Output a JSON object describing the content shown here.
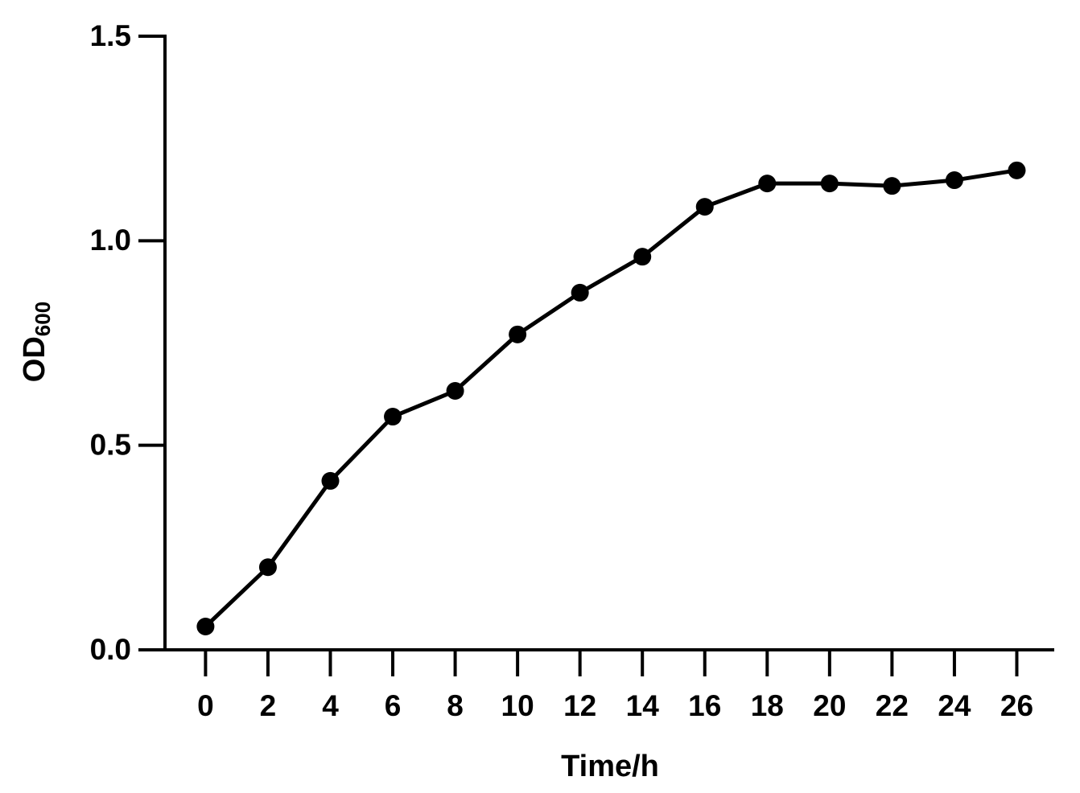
{
  "chart_data": {
    "type": "line",
    "x_label": "Time/h",
    "y_label": "OD",
    "y_label_subscript": "600",
    "x": [
      0,
      2,
      4,
      6,
      8,
      10,
      12,
      14,
      16,
      18,
      20,
      22,
      24,
      26
    ],
    "series": [
      {
        "color": "#000000",
        "values": [
          0.057,
          0.202,
          0.413,
          0.57,
          0.633,
          0.771,
          0.873,
          0.961,
          1.083,
          1.14,
          1.14,
          1.134,
          1.148,
          1.172
        ]
      }
    ],
    "xlim": [
      -1.3,
      27.2
    ],
    "xticks": [
      0,
      2,
      4,
      6,
      8,
      10,
      12,
      14,
      16,
      18,
      20,
      22,
      24,
      26
    ],
    "ylim": [
      0,
      1.5
    ],
    "yticks": [
      {
        "value": 0,
        "label": "0.0"
      },
      {
        "value": 0.5,
        "label": "0.5"
      },
      {
        "value": 1.0,
        "label": "1.0"
      },
      {
        "value": 1.5,
        "label": "1.5"
      }
    ],
    "grid": false
  }
}
